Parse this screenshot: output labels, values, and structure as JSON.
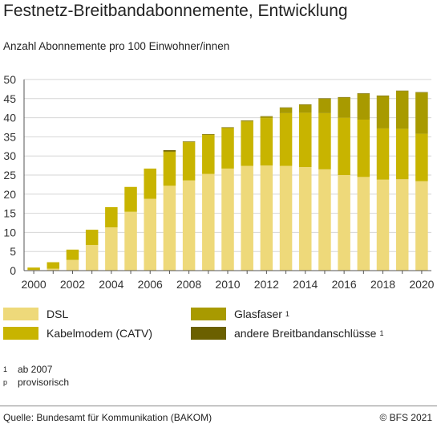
{
  "title": "Festnetz-Breitbandabonnemente, Entwicklung",
  "subtitle": "Anzahl Abonnemente pro 100 Einwohner/innen",
  "colors": {
    "dsl": "#eed97a",
    "kabel": "#c8b400",
    "glas": "#a89a00",
    "andere": "#6b6000",
    "axis": "#555555",
    "grid": "#d6d6d6"
  },
  "chart_data": {
    "type": "bar",
    "stacked": true,
    "categories": [
      "2000",
      "2001",
      "2002",
      "2003",
      "2004",
      "2005",
      "2006",
      "2007",
      "2008",
      "2009",
      "2010",
      "2011",
      "2012",
      "2013",
      "2014",
      "2015",
      "2016",
      "2017",
      "2018",
      "2019",
      "2020"
    ],
    "x_tick_labels": [
      "2000",
      "2002",
      "2004",
      "2006",
      "2008",
      "2010",
      "2012",
      "2014",
      "2016",
      "2018",
      "2020"
    ],
    "x_tick_suffix_last": "p",
    "ylim": [
      0,
      50
    ],
    "y_ticks": [
      "0",
      "5",
      "10",
      "15",
      "20",
      "25",
      "30",
      "35",
      "40",
      "45",
      "50"
    ],
    "grid": true,
    "series": [
      {
        "name": "DSL",
        "key": "dsl",
        "values": [
          0.2,
          0.5,
          2.8,
          6.7,
          11.3,
          15.4,
          18.8,
          22.2,
          23.6,
          25.3,
          26.7,
          27.4,
          27.5,
          27.4,
          27.1,
          26.5,
          25.0,
          24.5,
          23.8,
          23.9,
          23.4
        ]
      },
      {
        "name": "Kabelmodem (CATV)",
        "key": "kabel",
        "values": [
          0.6,
          1.7,
          2.7,
          4.0,
          5.3,
          6.5,
          7.9,
          8.8,
          10.0,
          10.2,
          10.6,
          11.6,
          12.4,
          13.8,
          14.2,
          14.7,
          15.0,
          15.0,
          13.4,
          13.2,
          12.4
        ]
      },
      {
        "name": "Glasfaser",
        "key": "glas",
        "note": "1",
        "values": [
          0,
          0,
          0,
          0,
          0,
          0,
          0,
          0.2,
          0.1,
          0.1,
          0.1,
          0.2,
          0.4,
          1.4,
          2.1,
          3.8,
          5.3,
          6.8,
          8.5,
          9.9,
          10.8
        ]
      },
      {
        "name": "andere Breitbandanschlüsse",
        "key": "andere",
        "note": "1",
        "values": [
          0,
          0,
          0,
          0,
          0,
          0,
          0,
          0.3,
          0.1,
          0.1,
          0.1,
          0.1,
          0.1,
          0.1,
          0.1,
          0.1,
          0.1,
          0.1,
          0.1,
          0.1,
          0.1
        ]
      }
    ]
  },
  "legend": [
    {
      "label": "DSL",
      "sup": "",
      "key": "dsl"
    },
    {
      "label": "Kabelmodem (CATV)",
      "sup": "",
      "key": "kabel"
    },
    {
      "label": "Glasfaser",
      "sup": "1",
      "key": "glas"
    },
    {
      "label": "andere Breitbandanschlüsse",
      "sup": "1",
      "key": "andere"
    }
  ],
  "notes": [
    {
      "mark": "1",
      "text": "ab 2007"
    },
    {
      "mark": "p",
      "text": "provisorisch"
    }
  ],
  "source": "Quelle: Bundesamt für Kommunikation (BAKOM)",
  "copyright": "© BFS 2021"
}
